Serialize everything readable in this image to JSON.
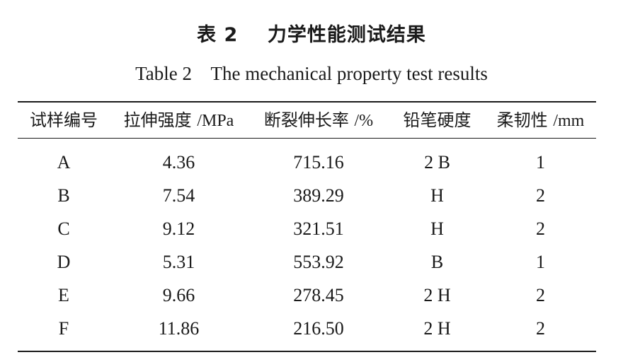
{
  "caption": {
    "zh_label": "表 2",
    "zh_title": "力学性能测试结果",
    "en_label": "Table 2",
    "en_title": "The mechanical property test results"
  },
  "table": {
    "headers": [
      {
        "text": "试样编号",
        "unit": ""
      },
      {
        "text": "拉伸强度 ",
        "unit": "/MPa"
      },
      {
        "text": "断裂伸长率 ",
        "unit": "/%"
      },
      {
        "text": "铅笔硬度",
        "unit": ""
      },
      {
        "text": "柔韧性 ",
        "unit": "/mm"
      }
    ],
    "rows": [
      [
        "A",
        "4.36",
        "715.16",
        "2 B",
        "1"
      ],
      [
        "B",
        "7.54",
        "389.29",
        "H",
        "2"
      ],
      [
        "C",
        "9.12",
        "321.51",
        "H",
        "2"
      ],
      [
        "D",
        "5.31",
        "553.92",
        "B",
        "1"
      ],
      [
        "E",
        "9.66",
        "278.45",
        "2 H",
        "2"
      ],
      [
        "F",
        "11.86",
        "216.50",
        "2 H",
        "2"
      ]
    ]
  }
}
